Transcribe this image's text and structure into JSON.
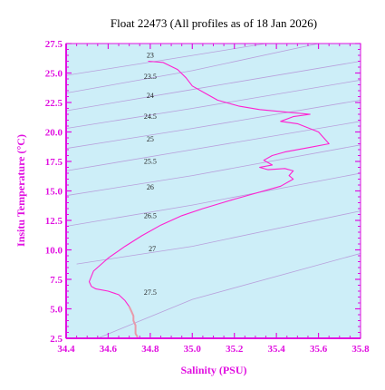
{
  "chart_data": {
    "type": "line",
    "title": "Float 22473  (All profiles as of 18 Jan 2026)",
    "xlabel": "Salinity (PSU)",
    "ylabel": "Insitu Temperature (°C)",
    "xlim": [
      34.4,
      35.8
    ],
    "ylim": [
      2.5,
      27.5
    ],
    "xticks": [
      34.4,
      34.6,
      34.8,
      35.0,
      35.2,
      35.4,
      35.6,
      35.8
    ],
    "xtick_labels": [
      "34.4",
      "34.6",
      "34.8",
      "35.0",
      "35.2",
      "35.4",
      "35.6",
      "35.8"
    ],
    "yticks": [
      2.5,
      5.0,
      7.5,
      10.0,
      12.5,
      15.0,
      17.5,
      20.0,
      22.5,
      25.0,
      27.5
    ],
    "ytick_labels": [
      "2.5",
      "5.0",
      "7.5",
      "10.0",
      "12.5",
      "15.0",
      "17.5",
      "20.0",
      "22.5",
      "25.0",
      "27.5"
    ],
    "grid": false,
    "colors": {
      "background": "#ffffff",
      "plot_area": "#cdeef8",
      "axes": "#e010e0",
      "profile": "#ff20d0",
      "deep_profile": "#e89aaa",
      "density_contours": "#b8a0dc"
    },
    "density_contours": [
      {
        "label": "23",
        "points": [
          [
            34.4,
            24.8
          ],
          [
            34.9,
            26.2
          ],
          [
            35.35,
            27.5
          ]
        ]
      },
      {
        "label": "23.5",
        "points": [
          [
            34.4,
            23.3
          ],
          [
            35.0,
            25.2
          ],
          [
            35.6,
            27.5
          ]
        ]
      },
      {
        "label": "24",
        "points": [
          [
            34.4,
            21.8
          ],
          [
            35.0,
            23.6
          ],
          [
            35.8,
            26.0
          ]
        ]
      },
      {
        "label": "24.5",
        "points": [
          [
            34.4,
            20.3
          ],
          [
            35.0,
            22.0
          ],
          [
            35.8,
            24.4
          ]
        ]
      },
      {
        "label": "25",
        "points": [
          [
            34.4,
            18.6
          ],
          [
            35.0,
            20.3
          ],
          [
            35.8,
            22.7
          ]
        ]
      },
      {
        "label": "25.5",
        "points": [
          [
            34.4,
            16.7
          ],
          [
            35.0,
            18.5
          ],
          [
            35.8,
            20.9
          ]
        ]
      },
      {
        "label": "26",
        "points": [
          [
            34.4,
            14.6
          ],
          [
            35.0,
            16.3
          ],
          [
            35.8,
            18.9
          ]
        ]
      },
      {
        "label": "26.5",
        "points": [
          [
            34.4,
            12.0
          ],
          [
            35.0,
            13.8
          ],
          [
            35.8,
            16.5
          ]
        ]
      },
      {
        "label": "27",
        "points": [
          [
            34.45,
            8.8
          ],
          [
            35.0,
            10.3
          ],
          [
            35.8,
            13.3
          ]
        ]
      },
      {
        "label": "27.5",
        "points": [
          [
            34.55,
            2.5
          ],
          [
            35.0,
            5.8
          ],
          [
            35.8,
            9.7
          ]
        ]
      }
    ],
    "series": [
      {
        "points": [
          [
            34.79,
            26.0
          ],
          [
            34.86,
            25.9
          ],
          [
            34.93,
            25.3
          ],
          [
            34.97,
            24.6
          ],
          [
            35.0,
            23.9
          ],
          [
            35.06,
            23.3
          ],
          [
            35.12,
            22.7
          ],
          [
            35.22,
            22.2
          ],
          [
            35.32,
            21.9
          ],
          [
            35.44,
            21.7
          ],
          [
            35.56,
            21.5
          ],
          [
            35.48,
            21.3
          ],
          [
            35.42,
            20.9
          ],
          [
            35.5,
            20.7
          ],
          [
            35.6,
            20.0
          ],
          [
            35.65,
            19.0
          ],
          [
            35.56,
            18.7
          ],
          [
            35.44,
            18.3
          ],
          [
            35.38,
            18.0
          ],
          [
            35.34,
            17.6
          ],
          [
            35.38,
            17.2
          ],
          [
            35.32,
            17.0
          ],
          [
            35.36,
            16.8
          ],
          [
            35.44,
            16.9
          ],
          [
            35.48,
            16.7
          ],
          [
            35.46,
            16.3
          ],
          [
            35.48,
            16.0
          ],
          [
            35.42,
            15.4
          ],
          [
            35.3,
            14.8
          ],
          [
            35.2,
            14.3
          ],
          [
            35.05,
            13.5
          ],
          [
            34.95,
            12.9
          ],
          [
            34.85,
            12.1
          ],
          [
            34.76,
            11.2
          ],
          [
            34.68,
            10.3
          ],
          [
            34.6,
            9.3
          ],
          [
            34.53,
            8.2
          ],
          [
            34.51,
            7.3
          ],
          [
            34.52,
            6.9
          ],
          [
            34.54,
            6.7
          ],
          [
            34.6,
            6.5
          ],
          [
            34.65,
            6.2
          ],
          [
            34.68,
            5.7
          ],
          [
            34.7,
            5.2
          ]
        ]
      },
      {
        "points": [
          [
            34.7,
            5.2
          ],
          [
            34.71,
            4.8
          ],
          [
            34.72,
            4.4
          ],
          [
            34.72,
            4.0
          ],
          [
            34.73,
            3.6
          ],
          [
            34.73,
            3.2
          ],
          [
            34.73,
            2.9
          ],
          [
            34.74,
            2.6
          ]
        ]
      }
    ]
  }
}
